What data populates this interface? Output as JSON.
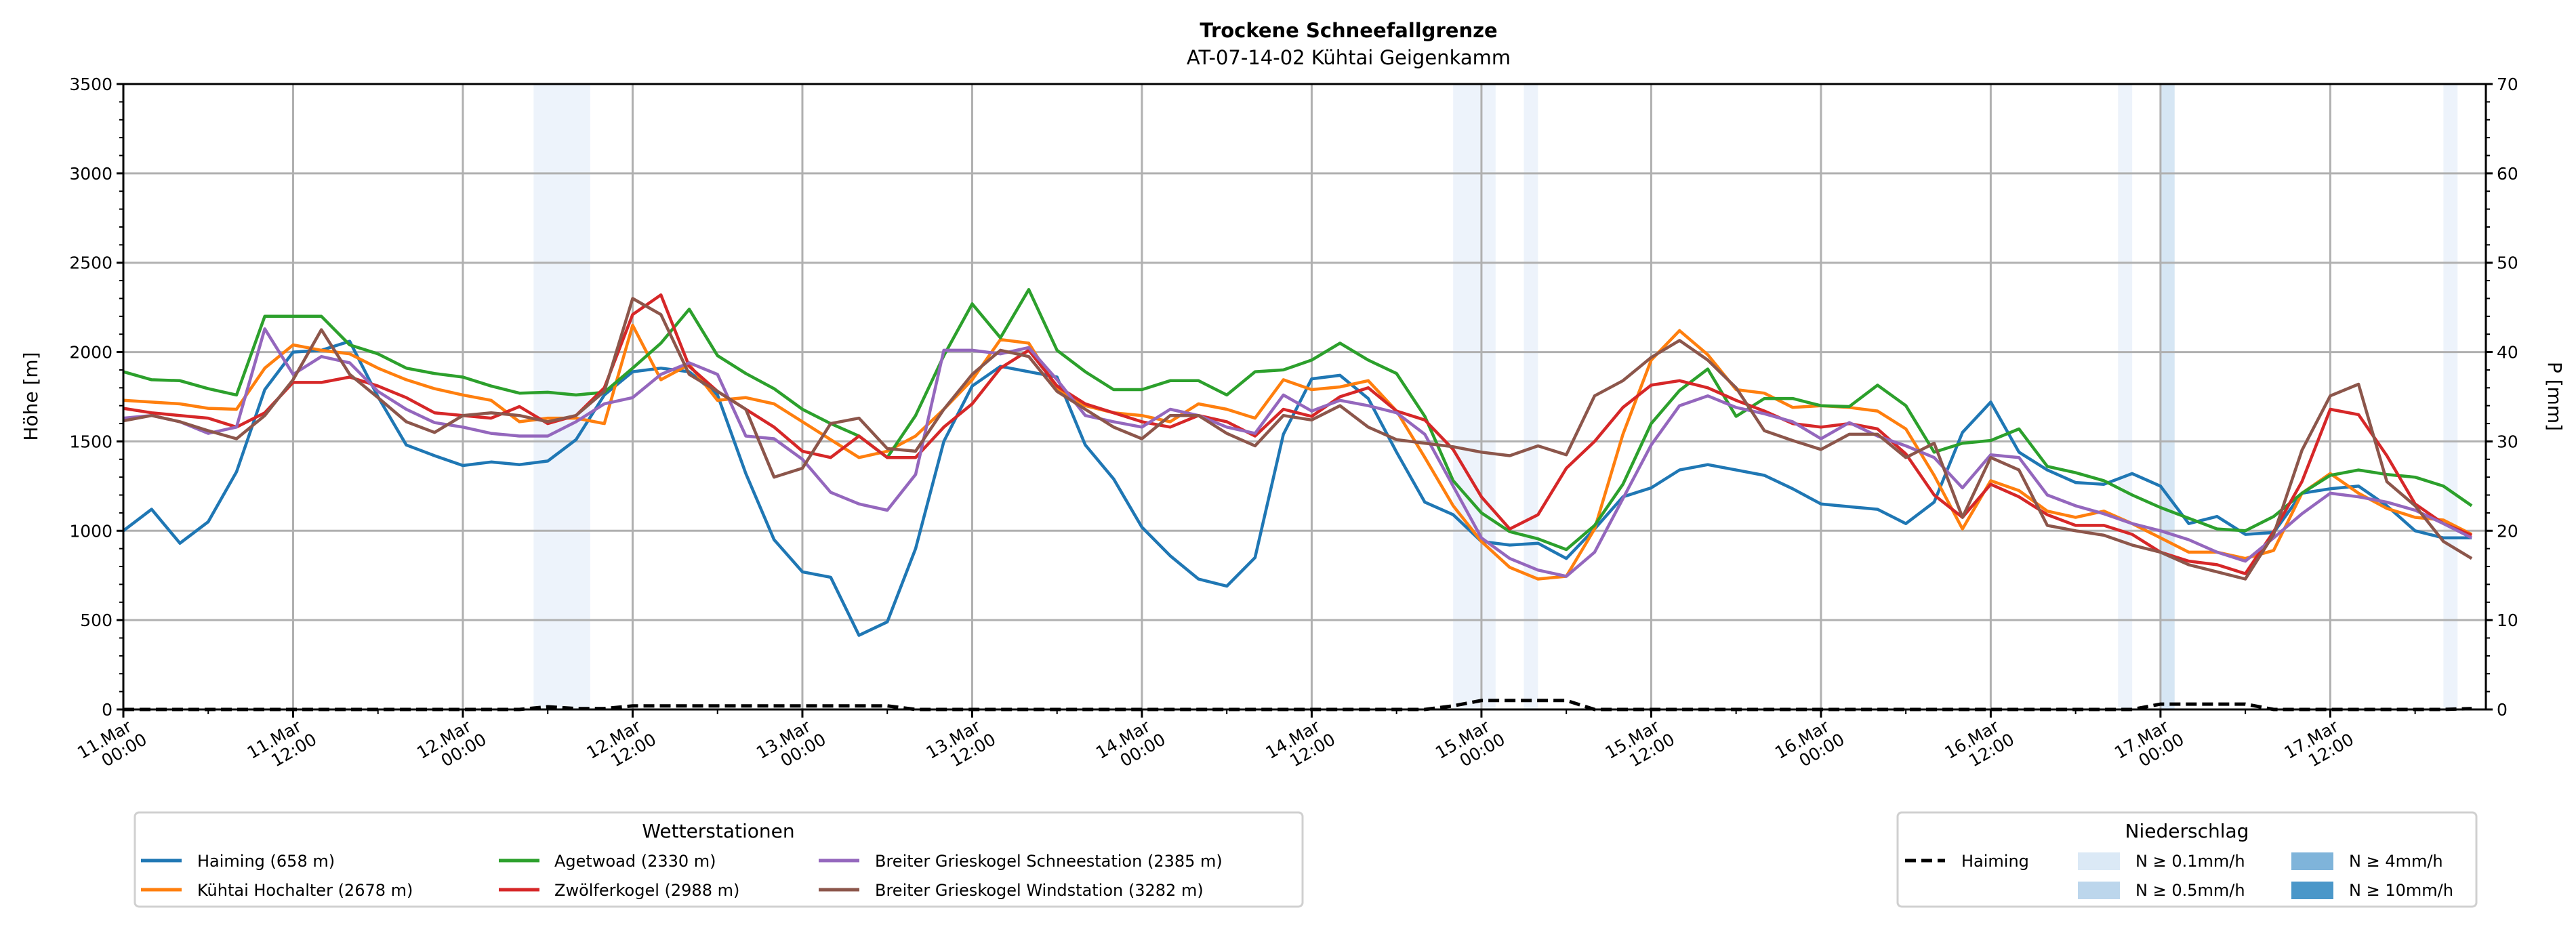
{
  "chart_data": {
    "type": "line",
    "title": "Trockene Schneefallgrenze",
    "subtitle": "AT-07-14-02 Kühtai Geigenkamm",
    "ylabel": "Höhe [m]",
    "ylabel_right": "P [mm]",
    "ylim": [
      0,
      3500
    ],
    "ylim_right": [
      0,
      70
    ],
    "yticks": [
      "0",
      "500",
      "1000",
      "1500",
      "2000",
      "2500",
      "3000",
      "3500"
    ],
    "yticks_right": [
      "0",
      "10",
      "20",
      "30",
      "40",
      "50",
      "60",
      "70"
    ],
    "x_range_hours": [
      0,
      167
    ],
    "x_step_hours": 2,
    "xticks": [
      {
        "hour": 0,
        "l1": "11.Mar",
        "l2": "00:00"
      },
      {
        "hour": 12,
        "l1": "11.Mar",
        "l2": "12:00"
      },
      {
        "hour": 24,
        "l1": "12.Mar",
        "l2": "00:00"
      },
      {
        "hour": 36,
        "l1": "12.Mar",
        "l2": "12:00"
      },
      {
        "hour": 48,
        "l1": "13.Mar",
        "l2": "00:00"
      },
      {
        "hour": 60,
        "l1": "13.Mar",
        "l2": "12:00"
      },
      {
        "hour": 72,
        "l1": "14.Mar",
        "l2": "00:00"
      },
      {
        "hour": 84,
        "l1": "14.Mar",
        "l2": "12:00"
      },
      {
        "hour": 96,
        "l1": "15.Mar",
        "l2": "00:00"
      },
      {
        "hour": 108,
        "l1": "15.Mar",
        "l2": "12:00"
      },
      {
        "hour": 120,
        "l1": "16.Mar",
        "l2": "00:00"
      },
      {
        "hour": 132,
        "l1": "16.Mar",
        "l2": "12:00"
      },
      {
        "hour": 144,
        "l1": "17.Mar",
        "l2": "00:00"
      },
      {
        "hour": 156,
        "l1": "17.Mar",
        "l2": "12:00"
      }
    ],
    "grid": true,
    "series": [
      {
        "name": "Haiming (658 m)",
        "color": "#1f77b4",
        "values": [
          1000,
          1120,
          930,
          1050,
          1330,
          1790,
          2000,
          2010,
          2060,
          1750,
          1480,
          1420,
          1365,
          1385,
          1370,
          1390,
          1510,
          1760,
          1890,
          1910,
          1890,
          1760,
          1320,
          950,
          770,
          740,
          415,
          490,
          900,
          1500,
          1810,
          1920,
          1890,
          1860,
          1480,
          1290,
          1020,
          860,
          730,
          690,
          850,
          1540,
          1850,
          1870,
          1740,
          1440,
          1160,
          1090,
          940,
          920,
          930,
          845,
          1010,
          1190,
          1240,
          1340,
          1370,
          1340,
          1310,
          1235,
          1150,
          1135,
          1120,
          1040,
          1160,
          1550,
          1720,
          1440,
          1340,
          1270,
          1260,
          1320,
          1250,
          1040,
          1080,
          980,
          990,
          1210,
          1235,
          1250,
          1140,
          1000,
          960,
          960
        ]
      },
      {
        "name": "Kühtai Hochalter (2678 m)",
        "color": "#ff7f0e",
        "values": [
          1730,
          1720,
          1710,
          1685,
          1680,
          1910,
          2040,
          2010,
          1990,
          1910,
          1845,
          1795,
          1760,
          1730,
          1610,
          1630,
          1630,
          1600,
          2150,
          1845,
          1930,
          1730,
          1745,
          1710,
          1610,
          1510,
          1410,
          1445,
          1530,
          1680,
          1845,
          2070,
          2050,
          1795,
          1700,
          1660,
          1645,
          1610,
          1710,
          1680,
          1630,
          1845,
          1790,
          1805,
          1840,
          1670,
          1410,
          1140,
          940,
          795,
          730,
          745,
          1010,
          1540,
          1955,
          2120,
          1985,
          1790,
          1770,
          1690,
          1700,
          1690,
          1670,
          1570,
          1310,
          1010,
          1280,
          1225,
          1110,
          1075,
          1110,
          1040,
          960,
          880,
          880,
          845,
          890,
          1210,
          1320,
          1210,
          1125,
          1075,
          1060,
          980
        ]
      },
      {
        "name": "Agetwoad (2330 m)",
        "color": "#2ca02c",
        "values": [
          1890,
          1845,
          1840,
          1795,
          1760,
          2200,
          2200,
          2200,
          2040,
          1990,
          1910,
          1880,
          1860,
          1810,
          1770,
          1775,
          1760,
          1775,
          1910,
          2050,
          2240,
          1980,
          1880,
          1795,
          1680,
          1600,
          1530,
          1410,
          1645,
          1980,
          2270,
          2080,
          2350,
          2010,
          1890,
          1790,
          1790,
          1840,
          1840,
          1760,
          1890,
          1900,
          1955,
          2050,
          1955,
          1880,
          1640,
          1280,
          1100,
          995,
          955,
          895,
          1030,
          1260,
          1600,
          1785,
          1905,
          1640,
          1740,
          1740,
          1700,
          1695,
          1815,
          1700,
          1440,
          1490,
          1505,
          1570,
          1360,
          1325,
          1280,
          1200,
          1130,
          1070,
          1010,
          1000,
          1080,
          1210,
          1310,
          1340,
          1315,
          1300,
          1250,
          1140
        ]
      },
      {
        "name": "Zwölferkogel (2988 m)",
        "color": "#d62728",
        "values": [
          1685,
          1660,
          1645,
          1630,
          1580,
          1660,
          1830,
          1830,
          1860,
          1810,
          1745,
          1660,
          1645,
          1630,
          1695,
          1600,
          1645,
          1800,
          2210,
          2320,
          1920,
          1780,
          1680,
          1580,
          1445,
          1410,
          1530,
          1410,
          1410,
          1580,
          1710,
          1910,
          2010,
          1810,
          1710,
          1660,
          1610,
          1580,
          1645,
          1610,
          1530,
          1680,
          1640,
          1750,
          1800,
          1670,
          1620,
          1455,
          1190,
          1010,
          1090,
          1350,
          1500,
          1690,
          1815,
          1840,
          1800,
          1730,
          1670,
          1600,
          1580,
          1600,
          1570,
          1430,
          1200,
          1075,
          1260,
          1190,
          1090,
          1030,
          1030,
          980,
          880,
          830,
          810,
          760,
          995,
          1275,
          1680,
          1650,
          1420,
          1150,
          1040,
          975
        ]
      },
      {
        "name": "Breiter Grieskogel Schneestation (2385 m)",
        "color": "#9467bd",
        "values": [
          1630,
          1645,
          1610,
          1545,
          1580,
          2130,
          1875,
          1975,
          1940,
          1780,
          1680,
          1605,
          1580,
          1545,
          1530,
          1530,
          1610,
          1710,
          1745,
          1875,
          1940,
          1875,
          1530,
          1515,
          1400,
          1215,
          1150,
          1115,
          1315,
          2010,
          2010,
          1990,
          2025,
          1845,
          1645,
          1610,
          1580,
          1680,
          1645,
          1580,
          1545,
          1760,
          1670,
          1730,
          1700,
          1660,
          1540,
          1250,
          960,
          845,
          780,
          745,
          880,
          1180,
          1480,
          1700,
          1755,
          1690,
          1655,
          1610,
          1515,
          1605,
          1530,
          1475,
          1410,
          1240,
          1425,
          1410,
          1200,
          1140,
          1095,
          1040,
          1000,
          950,
          880,
          830,
          960,
          1095,
          1210,
          1190,
          1160,
          1115,
          1040,
          960
        ]
      },
      {
        "name": "Breiter Grieskogel Windstation (3282 m)",
        "color": "#8c564b",
        "values": [
          1615,
          1645,
          1610,
          1560,
          1515,
          1645,
          1845,
          2125,
          1875,
          1745,
          1610,
          1550,
          1645,
          1660,
          1645,
          1610,
          1645,
          1780,
          2300,
          2210,
          1875,
          1780,
          1680,
          1300,
          1350,
          1600,
          1630,
          1460,
          1445,
          1680,
          1875,
          2010,
          1975,
          1780,
          1680,
          1580,
          1515,
          1645,
          1645,
          1545,
          1475,
          1645,
          1620,
          1700,
          1580,
          1510,
          1490,
          1470,
          1440,
          1420,
          1475,
          1425,
          1755,
          1840,
          1970,
          2065,
          1955,
          1800,
          1560,
          1505,
          1455,
          1540,
          1540,
          1410,
          1490,
          1075,
          1410,
          1340,
          1030,
          1000,
          975,
          920,
          880,
          810,
          770,
          730,
          980,
          1450,
          1755,
          1820,
          1275,
          1140,
          940,
          845
        ]
      }
    ],
    "precip_series": {
      "name": "Haiming",
      "color": "#000000",
      "values": [
        0,
        0,
        0,
        0,
        0,
        0,
        0,
        0,
        0,
        0,
        0,
        0,
        0,
        0,
        0,
        0.3,
        0.1,
        0.1,
        0.4,
        0.4,
        0.4,
        0.4,
        0.4,
        0.4,
        0.4,
        0.4,
        0.4,
        0.4,
        0,
        0,
        0,
        0,
        0,
        0,
        0,
        0,
        0,
        0,
        0,
        0,
        0,
        0,
        0,
        0,
        0,
        0,
        0,
        0.4,
        1.0,
        1.0,
        1.0,
        1.0,
        0,
        0,
        0,
        0,
        0,
        0,
        0,
        0,
        0,
        0,
        0,
        0,
        0,
        0,
        0,
        0,
        0,
        0,
        0,
        0,
        0.6,
        0.6,
        0.6,
        0.6,
        0,
        0,
        0,
        0,
        0,
        0,
        0,
        0.1
      ]
    },
    "precip_bands": [
      {
        "start_hour": 29,
        "end_hour": 33,
        "level": "N ≥ 0.1mm/h"
      },
      {
        "start_hour": 94,
        "end_hour": 97,
        "level": "N ≥ 0.1mm/h"
      },
      {
        "start_hour": 99,
        "end_hour": 100,
        "level": "N ≥ 0.1mm/h"
      },
      {
        "start_hour": 141,
        "end_hour": 142,
        "level": "N ≥ 0.1mm/h"
      },
      {
        "start_hour": 144,
        "end_hour": 145,
        "level": "N ≥ 0.5mm/h"
      },
      {
        "start_hour": 164,
        "end_hour": 165,
        "level": "N ≥ 0.1mm/h"
      }
    ],
    "legend_stations": {
      "title": "Wetterstationen",
      "placement": "bottom-left"
    },
    "legend_precip": {
      "title": "Niederschlag",
      "placement": "bottom-right",
      "line_label": "Haiming",
      "levels": [
        {
          "label": "N ≥ 0.1mm/h",
          "color": "#dbe9f6",
          "band_color": "#edf3fb"
        },
        {
          "label": "N ≥ 0.5mm/h",
          "color": "#bcd6ec",
          "band_color": "#d6e6f4"
        },
        {
          "label": "N ≥ 4mm/h",
          "color": "#7fb4da",
          "band_color": "#a9cbe6"
        },
        {
          "label": "N ≥ 10mm/h",
          "color": "#4a97c9",
          "band_color": "#7fb4da"
        }
      ]
    }
  }
}
